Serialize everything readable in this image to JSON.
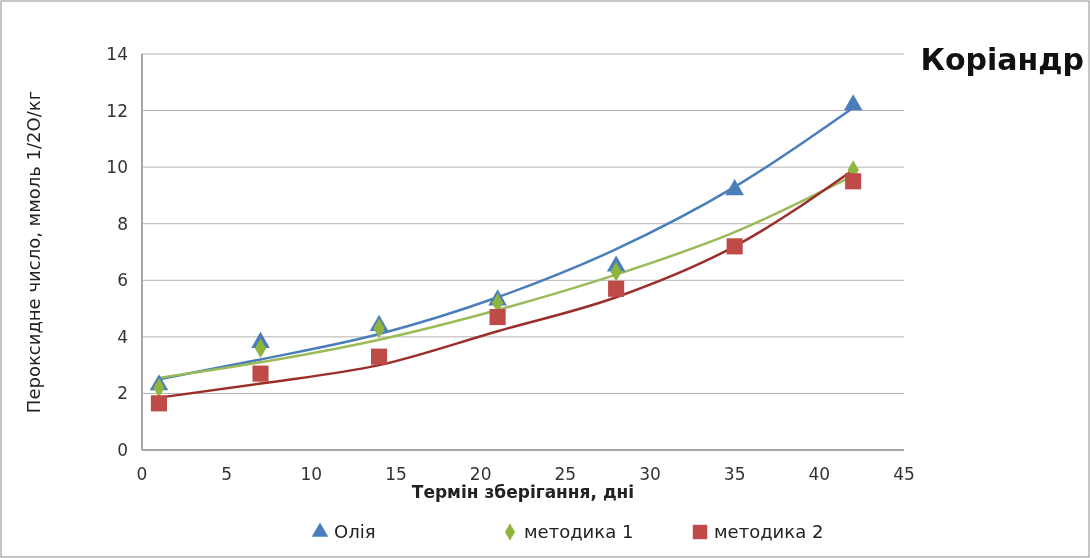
{
  "chart_data": {
    "type": "scatter",
    "title": "Коріандр",
    "xlabel": "Термін зберігання, дні",
    "ylabel": "Пероксидне число, ммоль 1/2О/кг",
    "x": [
      1,
      7,
      14,
      21,
      28,
      35,
      42
    ],
    "xlim": [
      0,
      45
    ],
    "xticks": [
      0,
      5,
      10,
      15,
      20,
      25,
      30,
      35,
      40,
      45
    ],
    "ylim": [
      0,
      14
    ],
    "yticks": [
      0,
      2,
      4,
      6,
      8,
      10,
      12,
      14
    ],
    "grid": "y",
    "legend": "bottom",
    "series": [
      {
        "name": "Олія",
        "color": "#4a7ebb",
        "marker": "triangle",
        "values": [
          2.3,
          3.8,
          4.4,
          5.3,
          6.5,
          9.2,
          12.2
        ]
      },
      {
        "name": "методика 1",
        "color": "#8fb53f",
        "marker": "diamond",
        "values": [
          2.2,
          3.6,
          4.3,
          5.2,
          6.3,
          null,
          9.9
        ]
      },
      {
        "name": "методика 2",
        "color": "#be4b48",
        "marker": "square",
        "values": [
          1.65,
          2.7,
          3.3,
          4.7,
          5.7,
          7.2,
          9.5
        ]
      },
      {
        "type": "line",
        "color": "#4a7ebb",
        "x": [
          1,
          7,
          14,
          21,
          28,
          35,
          42
        ],
        "values": [
          2.5,
          3.2,
          4.1,
          5.4,
          7.1,
          9.3,
          12.1
        ]
      },
      {
        "type": "line",
        "color": "#9bbb59",
        "x": [
          1,
          7,
          14,
          21,
          28,
          35,
          42
        ],
        "values": [
          2.55,
          3.1,
          3.9,
          4.95,
          6.2,
          7.7,
          9.7
        ]
      },
      {
        "type": "line",
        "color": "#9b2d2a",
        "x": [
          1,
          7,
          14,
          21,
          28,
          35,
          42
        ],
        "values": [
          1.85,
          2.35,
          3.0,
          4.2,
          5.4,
          7.2,
          9.9
        ]
      }
    ]
  }
}
